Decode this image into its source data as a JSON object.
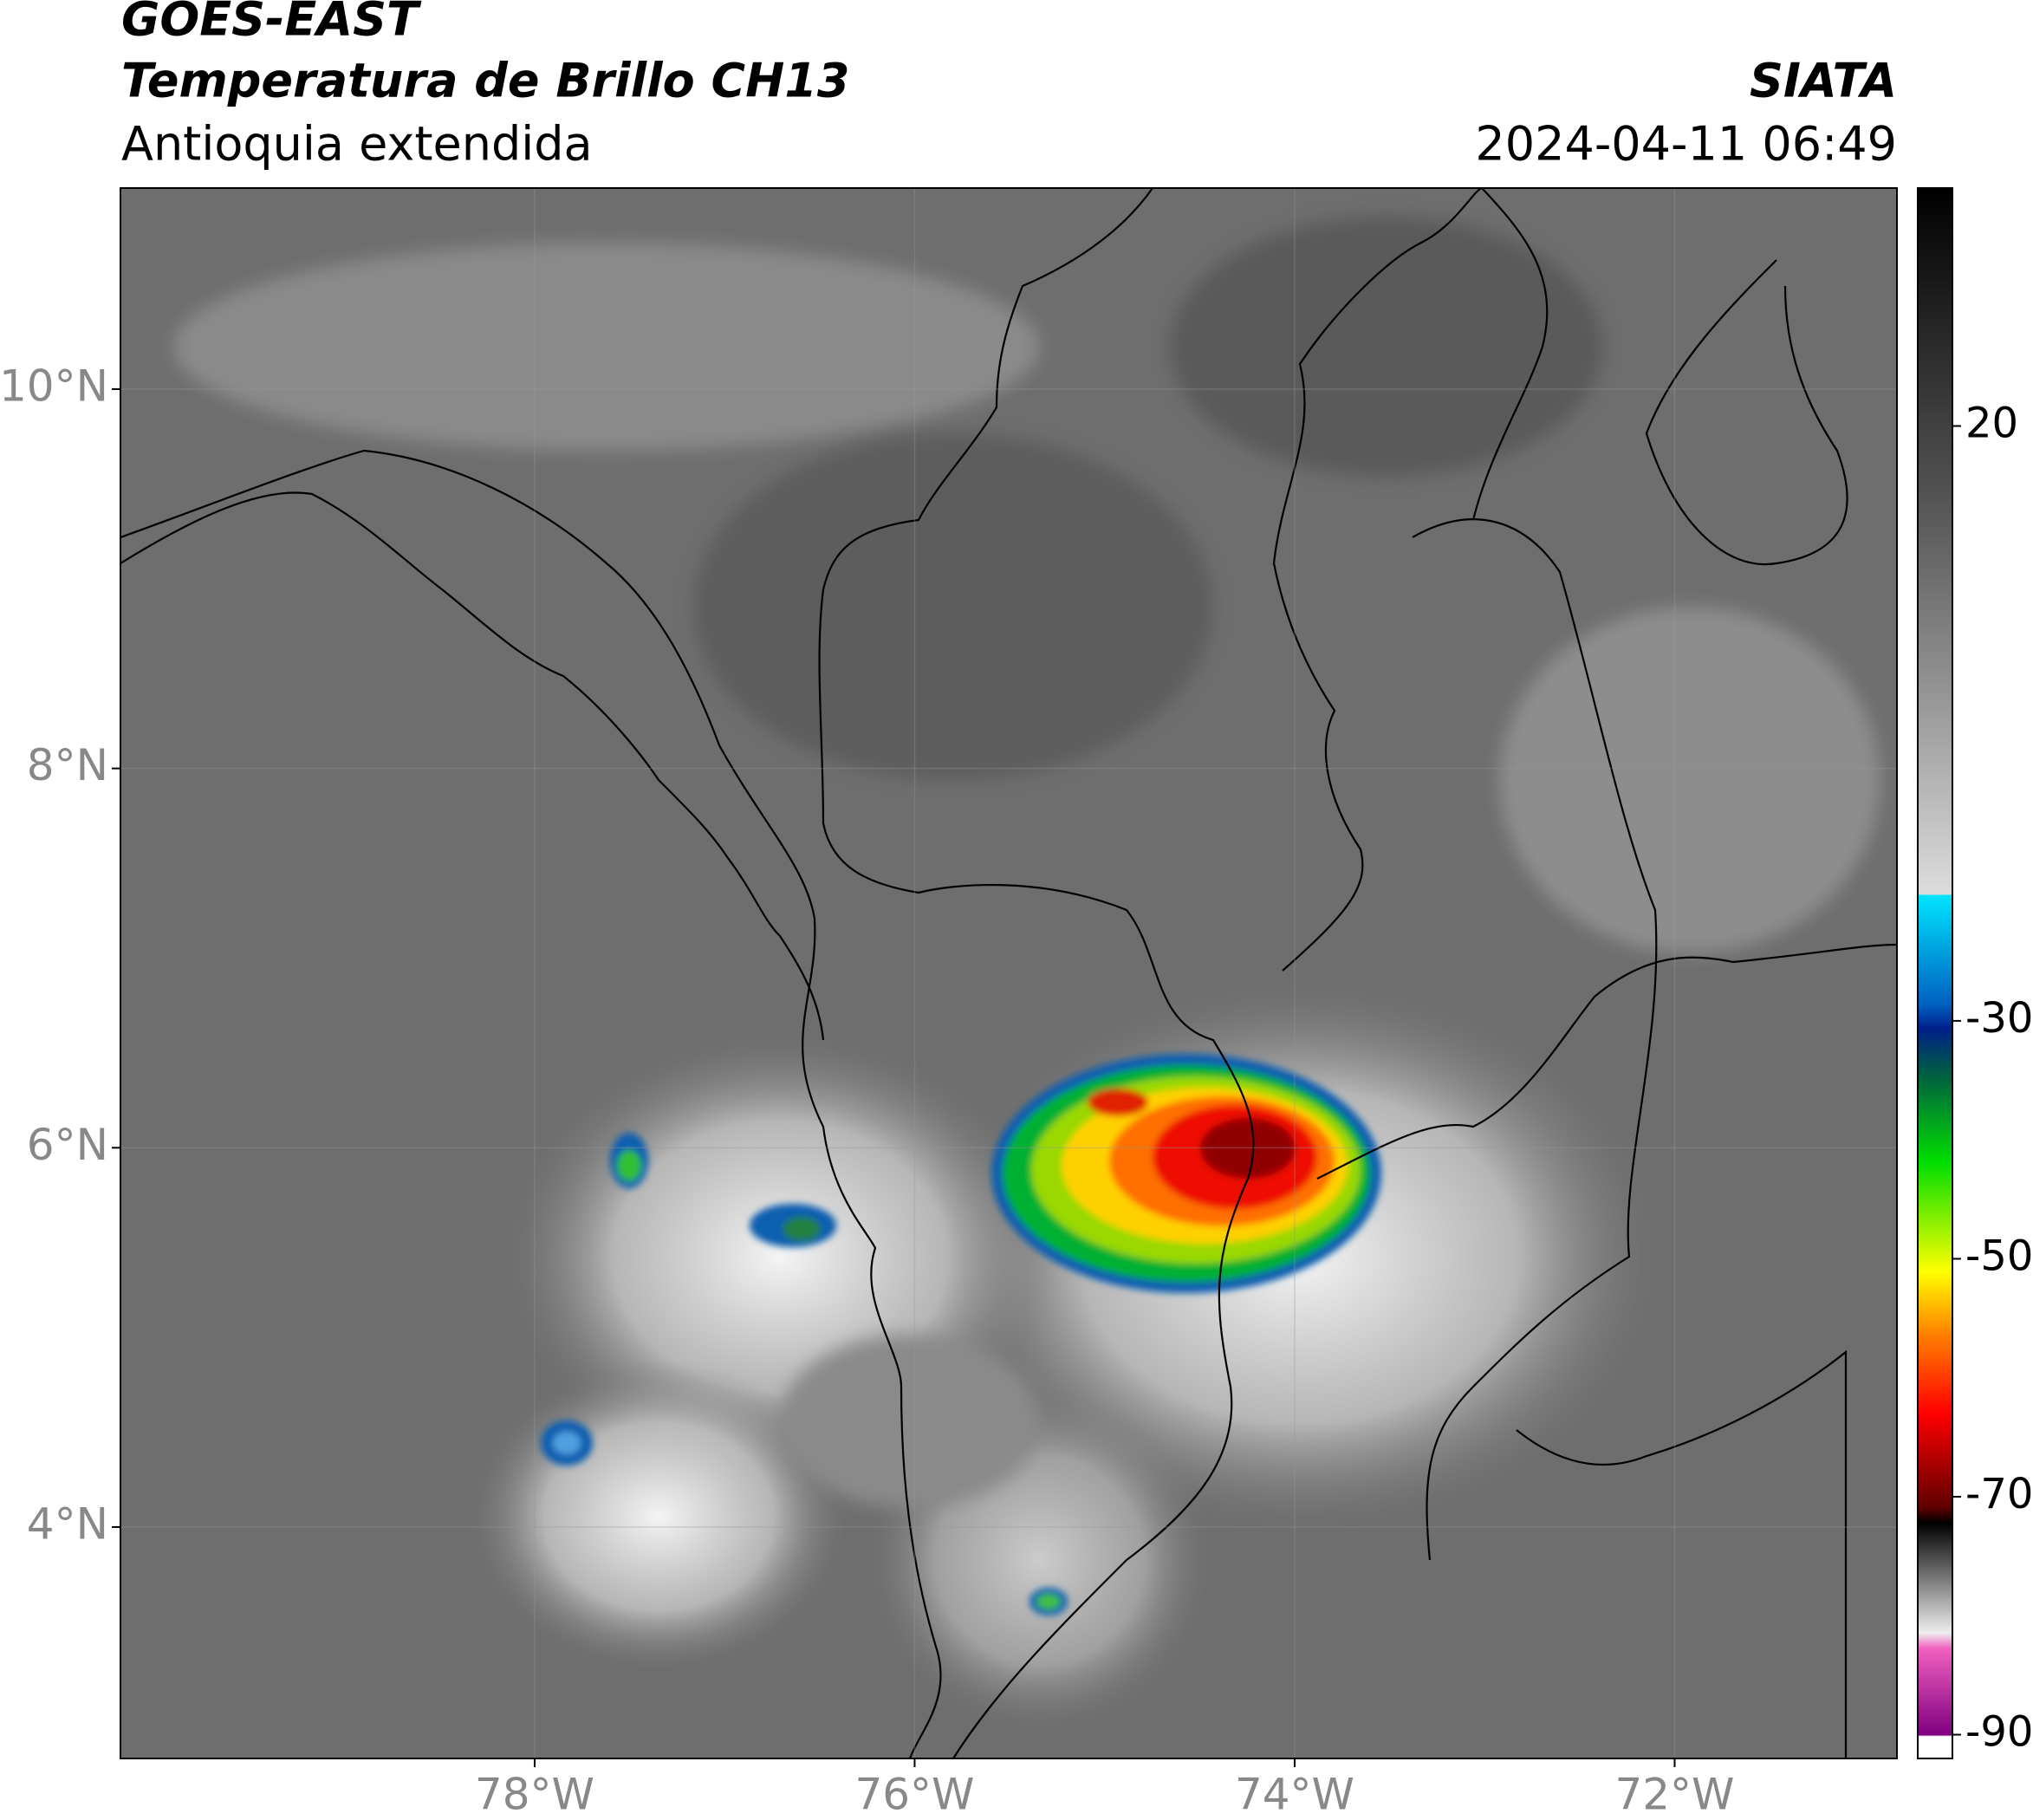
{
  "header": {
    "title": "GOES-EAST",
    "subtitle": "Temperatura de Brillo CH13",
    "region": "Antioquia extendida",
    "source": "SIATA",
    "datetime": "2024-04-11 06:49"
  },
  "map": {
    "lonlim": [
      -80.18,
      -70.83
    ],
    "latlim": [
      2.78,
      11.06
    ],
    "lonticks": [
      {
        "value": -78,
        "label": "78°W"
      },
      {
        "value": -76,
        "label": "76°W"
      },
      {
        "value": -74,
        "label": "74°W"
      },
      {
        "value": -72,
        "label": "72°W"
      }
    ],
    "latticks": [
      {
        "value": 10,
        "label": "10°N"
      },
      {
        "value": 8,
        "label": "8°N"
      },
      {
        "value": 6,
        "label": "6°N"
      },
      {
        "value": 4,
        "label": "4°N"
      }
    ],
    "grid": true
  },
  "colorbar": {
    "lim": [
      -92,
      40
    ],
    "ticks": [
      20,
      -30,
      -50,
      -70,
      -90
    ]
  }
}
